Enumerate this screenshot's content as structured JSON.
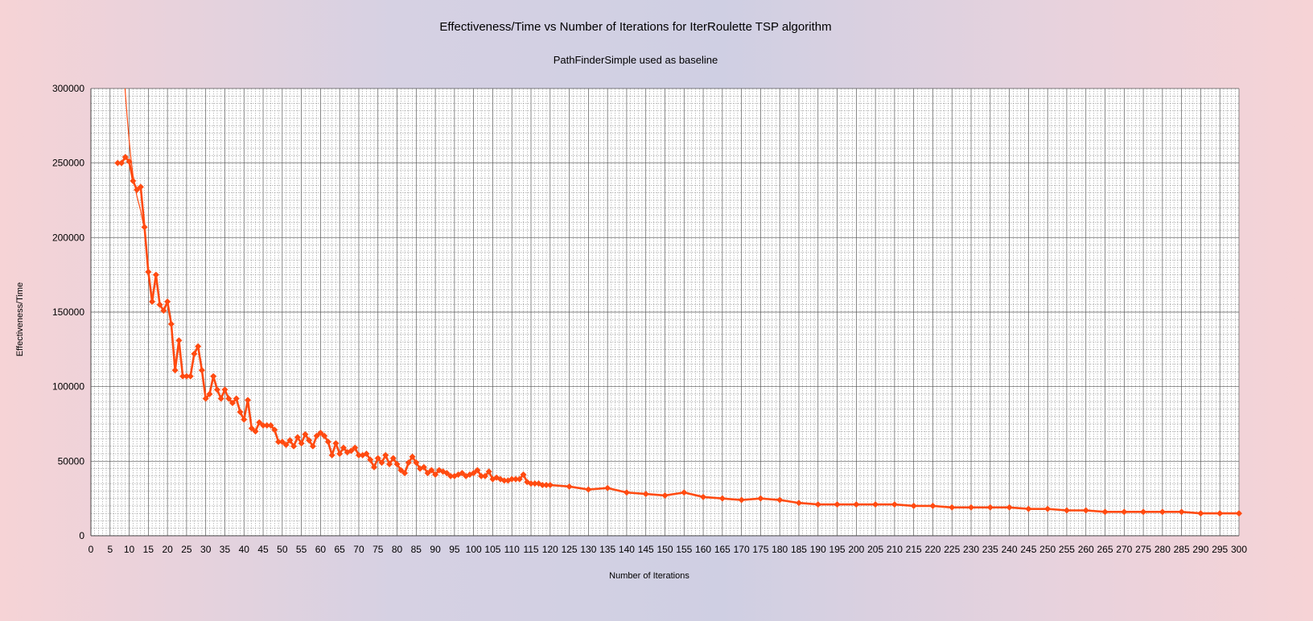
{
  "chart_data": {
    "type": "line",
    "title": "Effectiveness/Time vs Number of Iterations for IterRoulette TSP algorithm",
    "subtitle": "PathFinderSimple used as baseline",
    "xlabel": "Number of Iterations",
    "ylabel": "Effectiveness/Time",
    "xlim": [
      0,
      300
    ],
    "ylim": [
      0,
      300000
    ],
    "grid": true,
    "legend": "none",
    "x_ticks": [
      0,
      5,
      10,
      15,
      20,
      25,
      30,
      35,
      40,
      45,
      50,
      55,
      60,
      65,
      70,
      75,
      80,
      85,
      90,
      95,
      100,
      105,
      110,
      115,
      120,
      125,
      130,
      135,
      140,
      145,
      150,
      155,
      160,
      165,
      170,
      175,
      180,
      185,
      190,
      195,
      200,
      205,
      210,
      215,
      220,
      225,
      230,
      235,
      240,
      245,
      250,
      255,
      260,
      265,
      270,
      275,
      280,
      285,
      290,
      295,
      300
    ],
    "y_ticks": [
      0,
      50000,
      100000,
      150000,
      200000,
      250000,
      300000
    ],
    "colors": {
      "line": "#ff4a10",
      "grid": "#7f7f7f",
      "plot_bg": "#ffffff"
    },
    "series": [
      {
        "x": [
          7,
          8,
          9,
          10,
          11,
          12,
          13,
          14,
          15,
          16,
          17,
          18,
          19,
          20,
          21,
          22,
          23,
          24,
          25,
          26,
          27,
          28,
          29,
          30,
          31,
          32,
          33,
          34,
          35,
          36,
          37,
          38,
          39,
          40,
          41,
          42,
          43,
          44,
          45,
          46,
          47,
          48,
          49,
          50,
          51,
          52,
          53,
          54,
          55,
          56,
          57,
          58,
          59,
          60,
          61,
          62,
          63,
          64,
          65,
          66,
          67,
          68,
          69,
          70,
          71,
          72,
          73,
          74,
          75,
          76,
          77,
          78,
          79,
          80,
          81,
          82,
          83,
          84,
          85,
          86,
          87,
          88,
          89,
          90,
          91,
          92,
          93,
          94,
          95,
          96,
          97,
          98,
          99,
          100,
          101,
          102,
          103,
          104,
          105,
          106,
          107,
          108,
          109,
          110,
          111,
          112,
          113,
          114,
          115,
          116,
          117,
          118,
          119,
          120,
          125,
          130,
          135,
          140,
          145,
          150,
          155,
          160,
          165,
          170,
          175,
          180,
          185,
          190,
          195,
          200,
          205,
          210,
          215,
          220,
          225,
          230,
          235,
          240,
          245,
          250,
          255,
          260,
          265,
          270,
          275,
          280,
          285,
          290,
          295,
          300
        ],
        "values": [
          250000,
          250000,
          254000,
          251000,
          238000,
          232000,
          234000,
          207000,
          177000,
          157000,
          175000,
          155000,
          151000,
          157000,
          142000,
          111000,
          131000,
          107000,
          107000,
          107000,
          122000,
          127000,
          111000,
          92000,
          95000,
          107000,
          98000,
          92000,
          98000,
          92000,
          89000,
          92000,
          83000,
          78000,
          91000,
          72000,
          70000,
          76000,
          74000,
          74000,
          74000,
          71000,
          63000,
          63000,
          61000,
          64000,
          60000,
          66000,
          62000,
          68000,
          64000,
          60000,
          67000,
          69000,
          67000,
          63000,
          54000,
          62000,
          55000,
          59000,
          56000,
          57000,
          59000,
          54000,
          54000,
          55000,
          51000,
          46000,
          52000,
          49000,
          54000,
          48000,
          52000,
          48000,
          44000,
          42000,
          49000,
          53000,
          49000,
          45000,
          46000,
          42000,
          44000,
          41000,
          44000,
          43000,
          42000,
          40000,
          40000,
          41000,
          42000,
          40000,
          41000,
          42000,
          44000,
          40000,
          40000,
          43000,
          38000,
          39000,
          38000,
          37000,
          37000,
          38000,
          38000,
          38000,
          41000,
          36000,
          35000,
          35000,
          35000,
          34000,
          34000,
          34000,
          33000,
          31000,
          32000,
          29000,
          28000,
          27000,
          29000,
          26000,
          25000,
          24000,
          25000,
          24000,
          22000,
          21000,
          21000,
          21000,
          21000,
          21000,
          20000,
          20000,
          19000,
          19000,
          19000,
          19000,
          18000,
          18000,
          17000,
          17000,
          16000,
          16000,
          16000,
          16000,
          16000,
          15000,
          15000,
          15000
        ]
      }
    ],
    "extra_line": {
      "x": [
        8,
        8.5,
        9,
        9.5,
        10,
        10.5,
        11,
        12,
        13,
        14
      ],
      "values": [
        340000,
        318000,
        297000,
        280000,
        265000,
        252000,
        242000,
        228000,
        218000,
        205000
      ]
    }
  }
}
